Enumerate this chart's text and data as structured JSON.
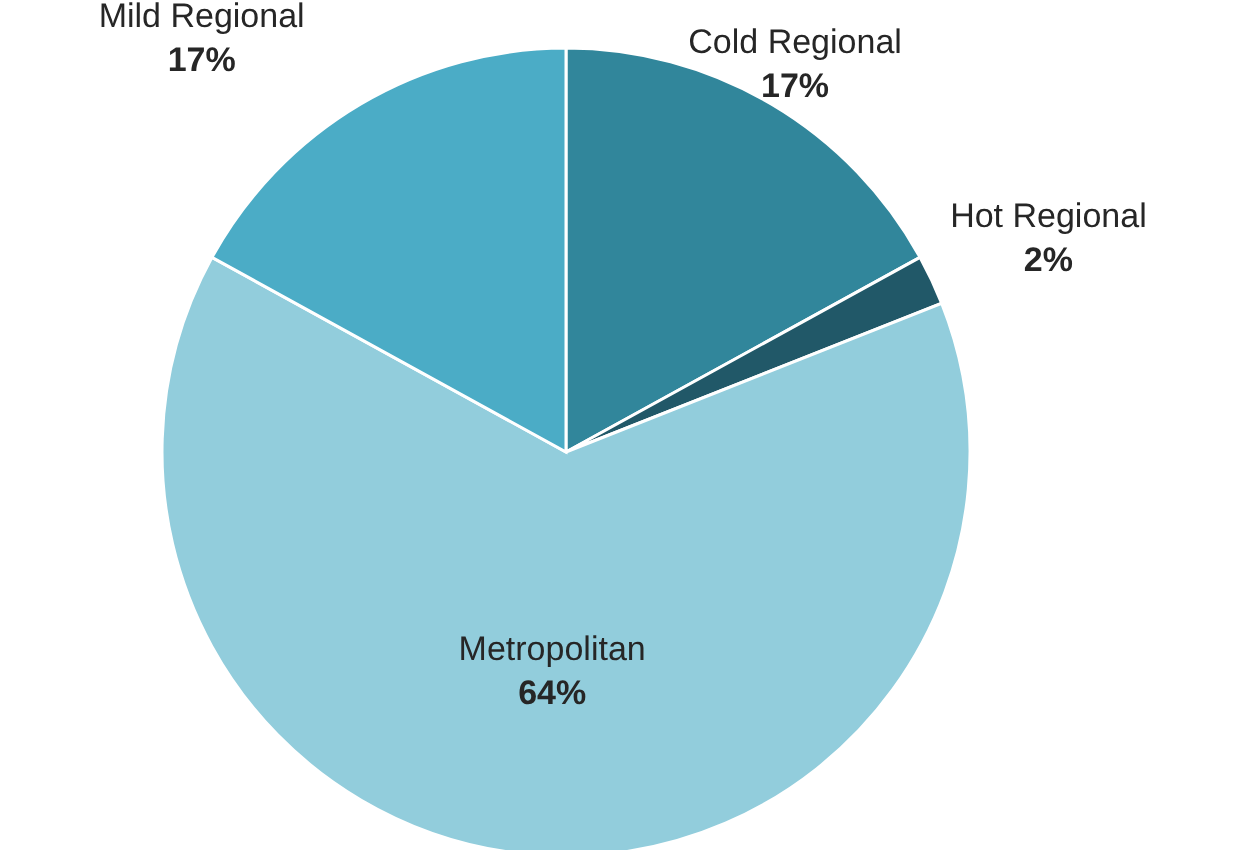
{
  "chart_data": {
    "type": "pie",
    "categories": [
      "Cold Regional",
      "Hot Regional",
      "Metropolitan",
      "Mild Regional"
    ],
    "values": [
      17,
      2,
      64,
      17
    ],
    "value_labels": [
      "17%",
      "2%",
      "64%",
      "17%"
    ],
    "colors": [
      "#31869b",
      "#215868",
      "#92cddc",
      "#4bacc6"
    ]
  }
}
